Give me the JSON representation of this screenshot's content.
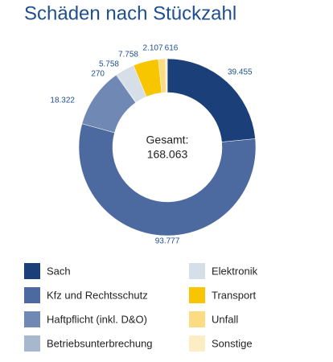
{
  "chart_data": {
    "type": "donut",
    "title": "Schäden nach Stückzahl",
    "categories": [
      "Sach",
      "Kfz und Rechtsschutz",
      "Haftpflicht (inkl. D&O)",
      "Betriebsunterbrechung",
      "Elektronik",
      "Transport",
      "Unfall",
      "Sonstige"
    ],
    "values": [
      39455,
      93777,
      18322,
      270,
      5758,
      7758,
      2107,
      616
    ],
    "value_labels": [
      "39.455",
      "93.777",
      "18.322",
      "270",
      "5.758",
      "7.758",
      "2.107",
      "616"
    ],
    "colors": [
      "#1b3f78",
      "#4d6aa0",
      "#7089b4",
      "#a7b8ce",
      "#d6dee7",
      "#f7c600",
      "#fbdc82",
      "#fdedc4"
    ],
    "total_title": "Gesamt:",
    "total": {
      "value": 168063,
      "label": "168.063"
    }
  }
}
